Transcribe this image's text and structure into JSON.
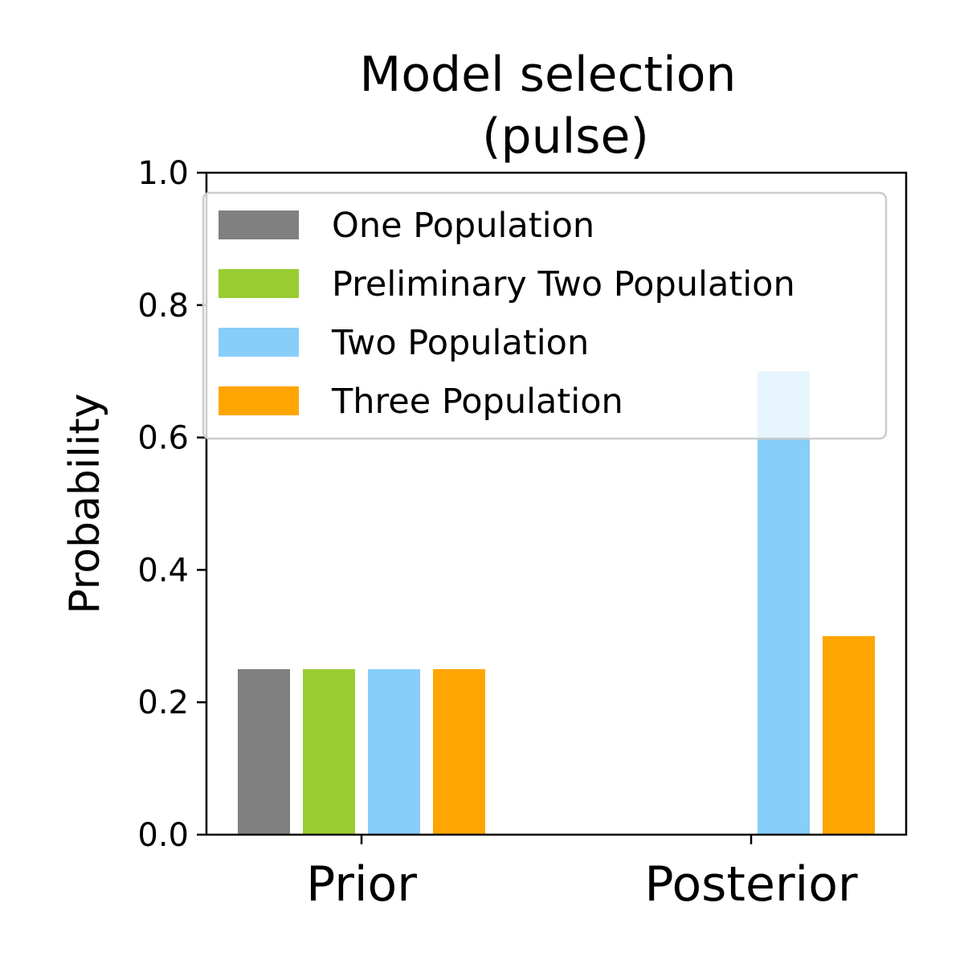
{
  "chart_data": {
    "type": "bar",
    "title": [
      "Model selection",
      "(pulse)"
    ],
    "xlabel": "",
    "ylabel": "Probability",
    "ylim": [
      0,
      1.0
    ],
    "yticks": [
      "0.0",
      "0.2",
      "0.4",
      "0.6",
      "0.8",
      "1.0"
    ],
    "categories": [
      "Prior",
      "Posterior"
    ],
    "grid": false,
    "legend_position": "top-right",
    "series": [
      {
        "name": "One Population",
        "color": "#808080",
        "values": [
          0.25,
          0.0
        ]
      },
      {
        "name": "Preliminary Two Population",
        "color": "#9acd32",
        "values": [
          0.25,
          0.0
        ]
      },
      {
        "name": "Two Population",
        "color": "#87cefa",
        "values": [
          0.25,
          0.7
        ]
      },
      {
        "name": "Three Population",
        "color": "#ffa500",
        "values": [
          0.25,
          0.3
        ]
      }
    ]
  }
}
